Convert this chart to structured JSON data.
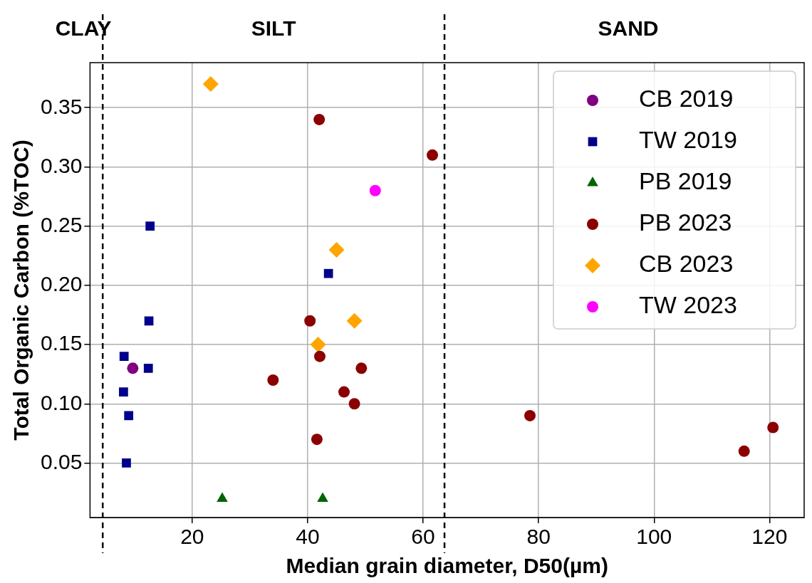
{
  "chart_data": {
    "type": "scatter",
    "xlabel": "Median grain diameter, D50(µm)",
    "ylabel": "Total Organic Carbon (%TOC)",
    "xlim": [
      2.3,
      126
    ],
    "xticks": [
      20,
      40,
      60,
      80,
      100,
      120
    ],
    "ylim": [
      0.004,
      0.388
    ],
    "yticks": [
      0.05,
      {
        "value": 0.1,
        "label": "0.10"
      },
      0.15,
      {
        "value": 0.2,
        "label": "0.20"
      },
      0.25,
      {
        "value": 0.3,
        "label": "0.30"
      },
      0.35
    ],
    "grid": true,
    "legend": "top right",
    "annotations": [
      "CLAY",
      "SILT",
      "SAND"
    ],
    "ref_lines": [
      {
        "axis": "x",
        "value": 4.5,
        "line_style": "dashed",
        "color": "#000000"
      },
      {
        "axis": "x",
        "value": 63.7,
        "line_style": "dashed",
        "color": "#000000"
      }
    ],
    "series": [
      {
        "name": "CB 2019",
        "color": "#800080",
        "marker": "circle",
        "x": [
          9.7
        ],
        "values": [
          0.13
        ]
      },
      {
        "name": "TW 2019",
        "color": "#00008b",
        "marker": "square",
        "x": [
          12.7,
          12.5,
          8.2,
          12.4,
          8.1,
          9.0,
          8.6,
          43.6
        ],
        "values": [
          0.25,
          0.17,
          0.14,
          0.13,
          0.11,
          0.09,
          0.05,
          0.21
        ]
      },
      {
        "name": "PB 2019",
        "color": "#006400",
        "marker": "triangle",
        "x": [
          25.2,
          42.6
        ],
        "values": [
          0.02,
          0.02
        ]
      },
      {
        "name": "PB 2023",
        "color": "#8b0000",
        "marker": "circle",
        "x": [
          42.0,
          61.6,
          40.4,
          34.0,
          42.1,
          49.3,
          46.3,
          48.1,
          41.6,
          78.5,
          115.6,
          120.6
        ],
        "values": [
          0.34,
          0.31,
          0.17,
          0.12,
          0.14,
          0.13,
          0.11,
          0.1,
          0.07,
          0.09,
          0.06,
          0.08
        ]
      },
      {
        "name": "CB 2023",
        "color": "#ffa500",
        "marker": "diamond",
        "x": [
          23.2,
          45.0,
          48.1,
          41.8
        ],
        "values": [
          0.37,
          0.23,
          0.17,
          0.15
        ]
      },
      {
        "name": "TW 2023",
        "color": "#ff00ff",
        "marker": "circle",
        "x": [
          51.7
        ],
        "values": [
          0.28
        ]
      }
    ]
  }
}
